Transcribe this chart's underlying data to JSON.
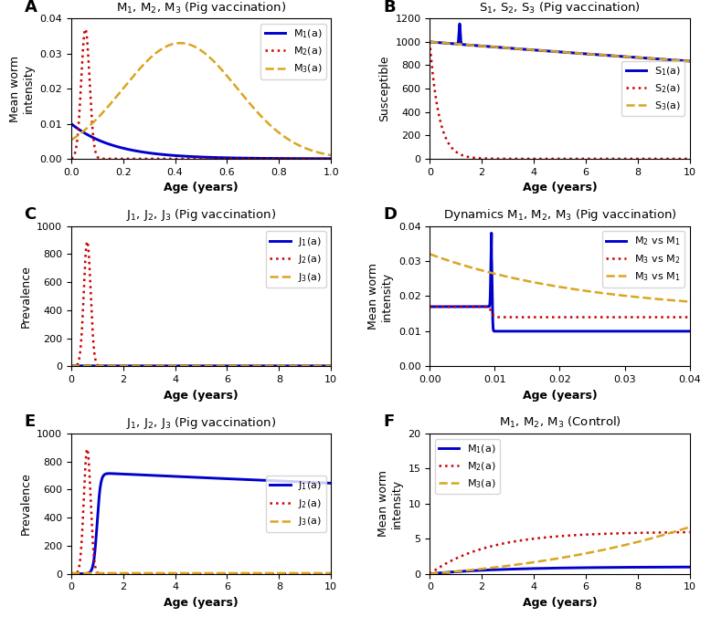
{
  "panel_A": {
    "title": "M$_1$, M$_2$, M$_3$ (Pig vaccination)",
    "xlabel": "Age (years)",
    "ylabel": "Mean worm\nintensity",
    "xlim": [
      0,
      1
    ],
    "ylim": [
      0,
      0.04
    ],
    "yticks": [
      0,
      0.01,
      0.02,
      0.03,
      0.04
    ],
    "legend": [
      "M$_1$(a)",
      "M$_2$(a)",
      "M$_3$(a)"
    ]
  },
  "panel_B": {
    "title": "S$_1$, S$_2$, S$_3$ (Pig vaccination)",
    "xlabel": "Age (years)",
    "ylabel": "Susceptible",
    "xlim": [
      0,
      10
    ],
    "ylim": [
      0,
      1200
    ],
    "yticks": [
      0,
      200,
      400,
      600,
      800,
      1000,
      1200
    ],
    "legend": [
      "S$_1$(a)",
      "S$_2$(a)",
      "S$_3$(a)"
    ]
  },
  "panel_C": {
    "title": "J$_1$, J$_2$, J$_3$ (Pig vaccination)",
    "xlabel": "Age (years)",
    "ylabel": "Prevalence",
    "xlim": [
      0,
      10
    ],
    "ylim": [
      0,
      1000
    ],
    "yticks": [
      0,
      200,
      400,
      600,
      800,
      1000
    ],
    "legend": [
      "J$_1$(a)",
      "J$_2$(a)",
      "J$_3$(a)"
    ]
  },
  "panel_D": {
    "title": "Dynamics M$_1$, M$_2$, M$_3$ (Pig vaccination)",
    "xlabel": "Age (years)",
    "ylabel": "Mean worm\nintensity",
    "xlim": [
      0,
      0.04
    ],
    "ylim": [
      0,
      0.04
    ],
    "yticks": [
      0,
      0.01,
      0.02,
      0.03,
      0.04
    ],
    "xticks": [
      0,
      0.01,
      0.02,
      0.03,
      0.04
    ],
    "legend": [
      "M$_2$ vs M$_1$",
      "M$_3$ vs M$_2$",
      "M$_3$ vs M$_1$"
    ]
  },
  "panel_E": {
    "title": "J$_1$, J$_2$, J$_3$ (Pig vaccination)",
    "xlabel": "Age (years)",
    "ylabel": "Prevalence",
    "xlim": [
      0,
      10
    ],
    "ylim": [
      0,
      1000
    ],
    "yticks": [
      0,
      200,
      400,
      600,
      800,
      1000
    ],
    "legend": [
      "J$_1$(a)",
      "J$_2$(a)",
      "J$_3$(a)"
    ]
  },
  "panel_F": {
    "title": "M$_1$, M$_2$, M$_3$ (Control)",
    "xlabel": "Age (years)",
    "ylabel": "Mean worm\nintensity",
    "xlim": [
      0,
      10
    ],
    "ylim": [
      0,
      20
    ],
    "yticks": [
      0,
      5,
      10,
      15,
      20
    ],
    "legend": [
      "M$_1$(a)",
      "M$_2$(a)",
      "M$_3$(a)"
    ]
  },
  "colors": {
    "blue": "#0000CC",
    "red": "#CC0000",
    "gold": "#DAA520"
  },
  "label_fontsize": 9,
  "title_fontsize": 9.5,
  "legend_fontsize": 8,
  "tick_fontsize": 8
}
